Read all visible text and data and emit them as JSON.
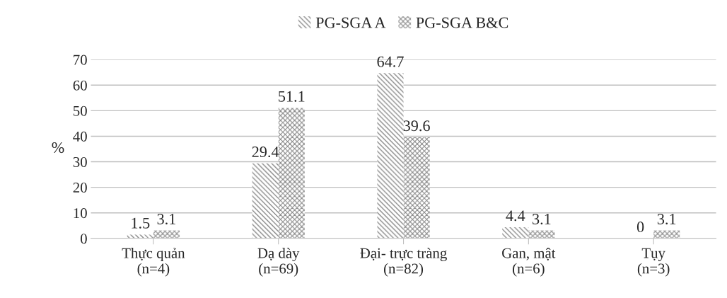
{
  "chart_data": {
    "type": "bar",
    "ylabel": "%",
    "categories": [
      "Thực quản\n(n=4)",
      "Dạ dày\n(n=69)",
      "Đại- trực tràng\n(n=82)",
      "Gan, mật\n(n=6)",
      "Tụy\n(n=3)"
    ],
    "series": [
      {
        "name": "PG-SGA A",
        "color": "#6e6e6e",
        "values": [
          1.5,
          29.4,
          64.7,
          4.4,
          0
        ]
      },
      {
        "name": "PG-SGA B&C",
        "color": "#8a8a8a",
        "values": [
          3.1,
          51.1,
          39.6,
          3.1,
          3.1
        ]
      }
    ],
    "ylim": [
      0,
      70
    ],
    "yticks": [
      0,
      10,
      20,
      30,
      40,
      50,
      60,
      70
    ],
    "grid": "y",
    "legend": "top",
    "data_labels": true
  }
}
